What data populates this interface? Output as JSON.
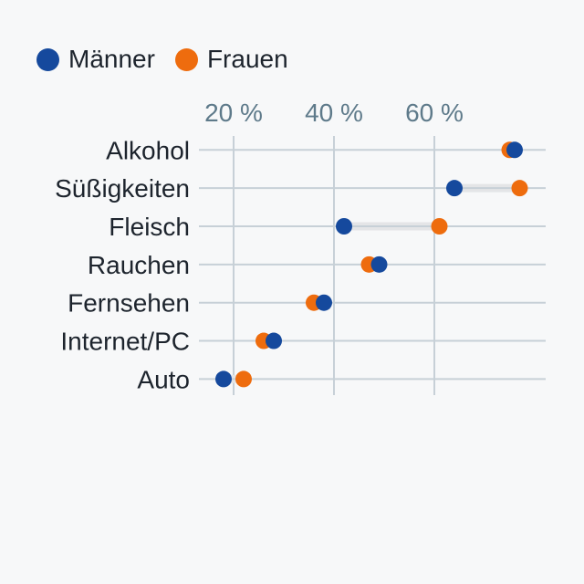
{
  "page": {
    "background": "#f7f8f9"
  },
  "legend": {
    "items": [
      {
        "label": "Männer",
        "color": "#15499d"
      },
      {
        "label": "Frauen",
        "color": "#ee6c0e"
      }
    ]
  },
  "chart_data": {
    "type": "dumbbell",
    "unit": "%",
    "categories": [
      "Alkohol",
      "Süßigkeiten",
      "Fleisch",
      "Rauchen",
      "Fernsehen",
      "Internet/PC",
      "Auto"
    ],
    "series": [
      {
        "name": "Männer",
        "color": "#15499d",
        "values": [
          76,
          64,
          42,
          49,
          38,
          28,
          18
        ]
      },
      {
        "name": "Frauen",
        "color": "#ee6c0e",
        "values": [
          75,
          77,
          61,
          47,
          36,
          26,
          22
        ]
      }
    ],
    "x_axis": {
      "min": 0,
      "max": 82,
      "ticks": [
        20,
        40,
        60
      ],
      "tick_labels": [
        "20 %",
        "40 %",
        "60 %"
      ],
      "grid": true
    },
    "legend_position": "top-left",
    "connector_color": "#e4e5e7",
    "grid_color": "#c7d0d7",
    "axis_label_color": "#5e7a8a",
    "category_label_color": "#1d242d",
    "background": "#f7f8f9"
  }
}
